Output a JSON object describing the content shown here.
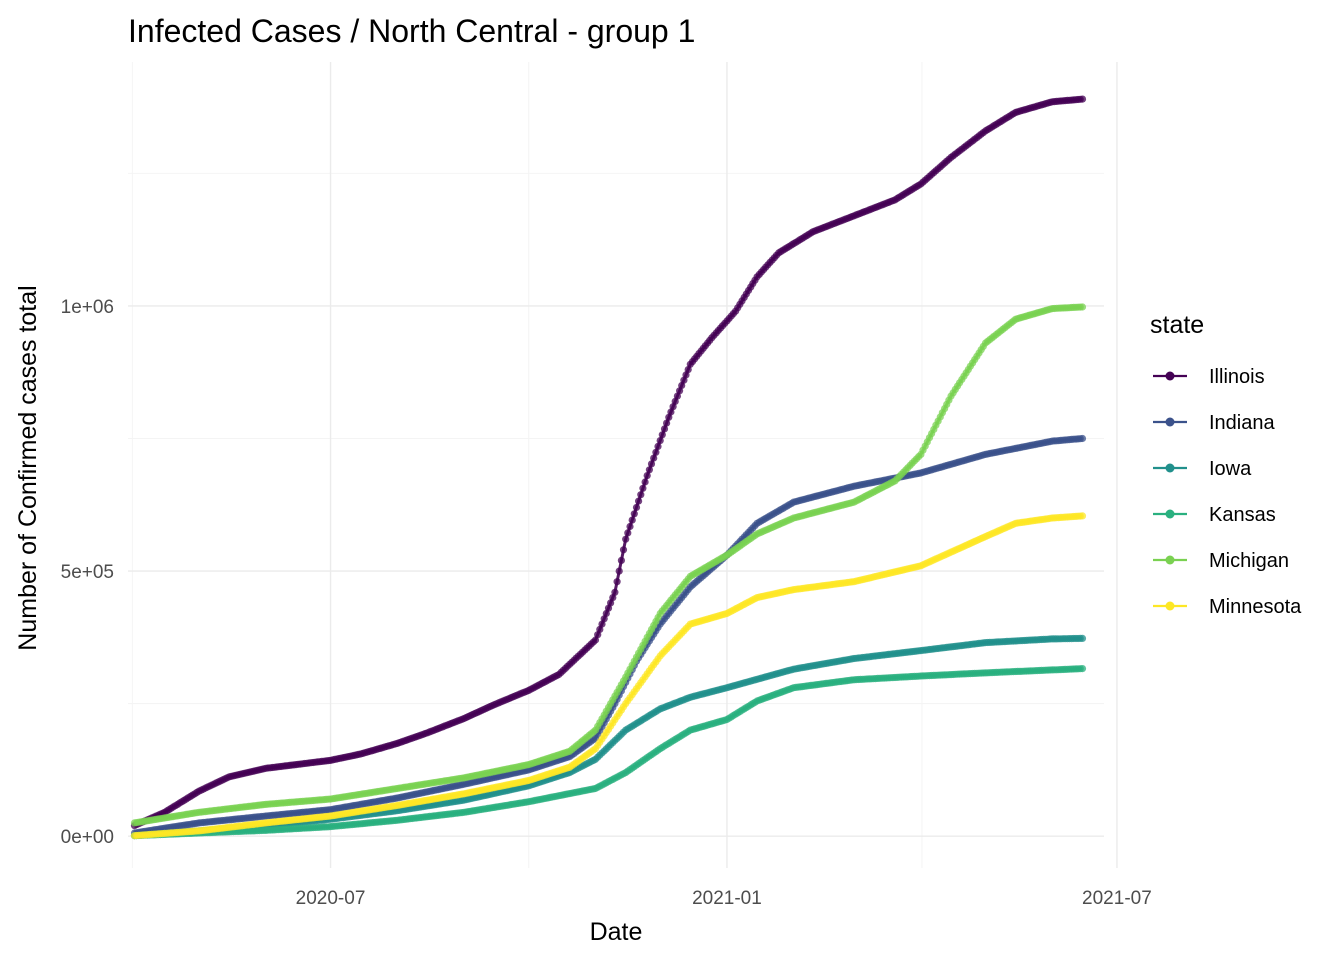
{
  "chart_data": {
    "type": "line",
    "title": "Infected Cases / North Central - group 1",
    "xlabel": "Date",
    "ylabel": "Number of Confirmed cases total",
    "x_range": [
      "2020-03-29",
      "2021-06-25"
    ],
    "ylim": [
      -60000,
      1460000
    ],
    "x_ticks": [
      {
        "date": "2020-07-01",
        "label": "2020-07"
      },
      {
        "date": "2021-01-01",
        "label": "2021-01"
      },
      {
        "date": "2021-07-01",
        "label": "2021-07"
      }
    ],
    "y_ticks": [
      {
        "value": 0,
        "label": "0e+00"
      },
      {
        "value": 500000,
        "label": "5e+05"
      },
      {
        "value": 1000000,
        "label": "1e+06"
      }
    ],
    "grid": true,
    "marker": "point",
    "legend": {
      "title": "state",
      "position": "right"
    },
    "series": [
      {
        "name": "Illinois",
        "color": "#440154",
        "points": [
          [
            "2020-04-01",
            20000
          ],
          [
            "2020-04-15",
            45000
          ],
          [
            "2020-05-01",
            85000
          ],
          [
            "2020-05-15",
            112000
          ],
          [
            "2020-06-01",
            128000
          ],
          [
            "2020-06-15",
            135000
          ],
          [
            "2020-07-01",
            143000
          ],
          [
            "2020-07-15",
            155000
          ],
          [
            "2020-08-01",
            175000
          ],
          [
            "2020-08-15",
            195000
          ],
          [
            "2020-09-01",
            222000
          ],
          [
            "2020-09-15",
            248000
          ],
          [
            "2020-10-01",
            275000
          ],
          [
            "2020-10-15",
            305000
          ],
          [
            "2020-11-01",
            370000
          ],
          [
            "2020-11-10",
            460000
          ],
          [
            "2020-11-15",
            560000
          ],
          [
            "2020-11-25",
            680000
          ],
          [
            "2020-12-05",
            790000
          ],
          [
            "2020-12-15",
            890000
          ],
          [
            "2020-12-25",
            940000
          ],
          [
            "2021-01-05",
            990000
          ],
          [
            "2021-01-15",
            1055000
          ],
          [
            "2021-01-25",
            1100000
          ],
          [
            "2021-02-10",
            1140000
          ],
          [
            "2021-03-01",
            1170000
          ],
          [
            "2021-03-20",
            1200000
          ],
          [
            "2021-04-01",
            1230000
          ],
          [
            "2021-04-15",
            1280000
          ],
          [
            "2021-05-01",
            1330000
          ],
          [
            "2021-05-15",
            1365000
          ],
          [
            "2021-06-01",
            1385000
          ],
          [
            "2021-06-15",
            1390000
          ]
        ]
      },
      {
        "name": "Indiana",
        "color": "#3b528b",
        "points": [
          [
            "2020-04-01",
            6000
          ],
          [
            "2020-04-15",
            15000
          ],
          [
            "2020-05-01",
            25000
          ],
          [
            "2020-06-01",
            38000
          ],
          [
            "2020-07-01",
            50000
          ],
          [
            "2020-08-01",
            72000
          ],
          [
            "2020-09-01",
            98000
          ],
          [
            "2020-10-01",
            125000
          ],
          [
            "2020-10-20",
            150000
          ],
          [
            "2020-11-01",
            185000
          ],
          [
            "2020-11-10",
            250000
          ],
          [
            "2020-11-20",
            330000
          ],
          [
            "2020-12-01",
            400000
          ],
          [
            "2020-12-15",
            470000
          ],
          [
            "2021-01-01",
            530000
          ],
          [
            "2021-01-15",
            590000
          ],
          [
            "2021-02-01",
            630000
          ],
          [
            "2021-03-01",
            660000
          ],
          [
            "2021-04-01",
            685000
          ],
          [
            "2021-05-01",
            720000
          ],
          [
            "2021-06-01",
            745000
          ],
          [
            "2021-06-15",
            750000
          ]
        ]
      },
      {
        "name": "Iowa",
        "color": "#21908c",
        "points": [
          [
            "2020-04-01",
            1000
          ],
          [
            "2020-05-01",
            10000
          ],
          [
            "2020-06-01",
            20000
          ],
          [
            "2020-07-01",
            32000
          ],
          [
            "2020-08-01",
            48000
          ],
          [
            "2020-09-01",
            68000
          ],
          [
            "2020-10-01",
            95000
          ],
          [
            "2020-10-20",
            120000
          ],
          [
            "2020-11-01",
            145000
          ],
          [
            "2020-11-15",
            200000
          ],
          [
            "2020-12-01",
            240000
          ],
          [
            "2020-12-15",
            262000
          ],
          [
            "2021-01-01",
            280000
          ],
          [
            "2021-02-01",
            315000
          ],
          [
            "2021-03-01",
            335000
          ],
          [
            "2021-04-01",
            350000
          ],
          [
            "2021-05-01",
            365000
          ],
          [
            "2021-06-01",
            372000
          ],
          [
            "2021-06-15",
            373000
          ]
        ]
      },
      {
        "name": "Kansas",
        "color": "#2ab07f",
        "points": [
          [
            "2020-04-01",
            1000
          ],
          [
            "2020-05-01",
            6000
          ],
          [
            "2020-06-01",
            11000
          ],
          [
            "2020-07-01",
            18000
          ],
          [
            "2020-08-01",
            30000
          ],
          [
            "2020-09-01",
            45000
          ],
          [
            "2020-10-01",
            65000
          ],
          [
            "2020-11-01",
            90000
          ],
          [
            "2020-11-15",
            120000
          ],
          [
            "2020-12-01",
            165000
          ],
          [
            "2020-12-15",
            200000
          ],
          [
            "2021-01-01",
            220000
          ],
          [
            "2021-01-15",
            255000
          ],
          [
            "2021-02-01",
            280000
          ],
          [
            "2021-03-01",
            295000
          ],
          [
            "2021-04-01",
            302000
          ],
          [
            "2021-05-01",
            308000
          ],
          [
            "2021-06-15",
            316000
          ]
        ]
      },
      {
        "name": "Michigan",
        "color": "#7ad151",
        "points": [
          [
            "2020-04-01",
            25000
          ],
          [
            "2020-05-01",
            45000
          ],
          [
            "2020-06-01",
            60000
          ],
          [
            "2020-07-01",
            70000
          ],
          [
            "2020-08-01",
            90000
          ],
          [
            "2020-09-01",
            110000
          ],
          [
            "2020-10-01",
            135000
          ],
          [
            "2020-10-20",
            160000
          ],
          [
            "2020-11-01",
            200000
          ],
          [
            "2020-11-15",
            300000
          ],
          [
            "2020-12-01",
            420000
          ],
          [
            "2020-12-15",
            490000
          ],
          [
            "2021-01-01",
            530000
          ],
          [
            "2021-01-15",
            570000
          ],
          [
            "2021-02-01",
            600000
          ],
          [
            "2021-03-01",
            630000
          ],
          [
            "2021-03-20",
            670000
          ],
          [
            "2021-04-01",
            720000
          ],
          [
            "2021-04-15",
            830000
          ],
          [
            "2021-05-01",
            930000
          ],
          [
            "2021-05-15",
            975000
          ],
          [
            "2021-06-01",
            995000
          ],
          [
            "2021-06-15",
            998000
          ]
        ]
      },
      {
        "name": "Minnesota",
        "color": "#fde725",
        "points": [
          [
            "2020-04-01",
            1000
          ],
          [
            "2020-05-01",
            10000
          ],
          [
            "2020-06-01",
            25000
          ],
          [
            "2020-07-01",
            38000
          ],
          [
            "2020-08-01",
            58000
          ],
          [
            "2020-09-01",
            80000
          ],
          [
            "2020-10-01",
            105000
          ],
          [
            "2020-10-20",
            130000
          ],
          [
            "2020-11-01",
            165000
          ],
          [
            "2020-11-15",
            250000
          ],
          [
            "2020-12-01",
            340000
          ],
          [
            "2020-12-15",
            400000
          ],
          [
            "2021-01-01",
            420000
          ],
          [
            "2021-01-15",
            450000
          ],
          [
            "2021-02-01",
            465000
          ],
          [
            "2021-03-01",
            480000
          ],
          [
            "2021-04-01",
            510000
          ],
          [
            "2021-05-01",
            565000
          ],
          [
            "2021-05-15",
            590000
          ],
          [
            "2021-06-01",
            600000
          ],
          [
            "2021-06-15",
            604000
          ]
        ]
      }
    ]
  }
}
